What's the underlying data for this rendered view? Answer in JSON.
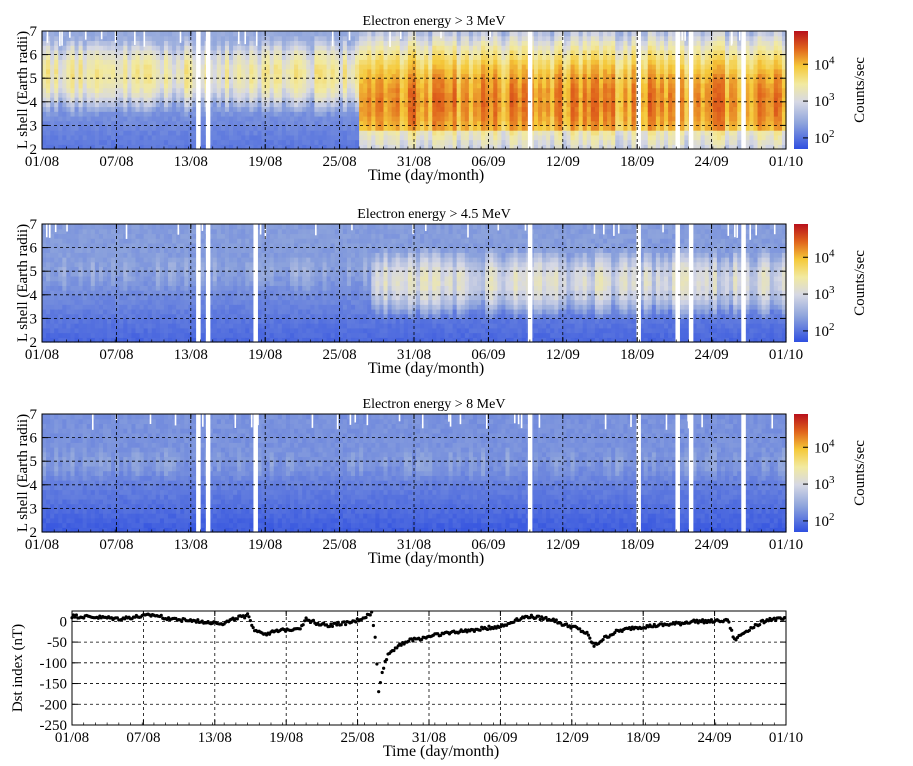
{
  "figure": {
    "x_tick_labels": [
      "01/08",
      "07/08",
      "13/08",
      "19/08",
      "25/08",
      "31/08",
      "06/09",
      "12/09",
      "18/09",
      "24/09",
      "01/10"
    ],
    "x_axis_label": "Time (day/month)",
    "colorbar_label": "Counts/sec",
    "colorbar_tick_labels": [
      "10^2",
      "10^3",
      "10^4"
    ]
  },
  "chart_data": [
    {
      "type": "heatmap",
      "title": "Electron energy > 3 MeV",
      "xlabel": "Time (day/month)",
      "ylabel": "L shell (Earth radii)",
      "x_range": [
        "01/08",
        "01/10"
      ],
      "ylim": [
        2,
        7
      ],
      "y_ticks": [
        2,
        3,
        4,
        5,
        6,
        7
      ],
      "colorbar": {
        "label": "Counts/sec",
        "scale": "log",
        "range": [
          50,
          80000
        ],
        "ticks": [
          100,
          1000,
          10000
        ]
      },
      "grid": true,
      "background_counts": 300,
      "flux_profile": [
        {
          "from_day": 0,
          "to_day": 26,
          "peak_L": 5.2,
          "width": 1.0,
          "counts": 3000
        },
        {
          "from_day": 26,
          "to_day": 61,
          "peak_L": 4.0,
          "width": 1.6,
          "counts": 20000
        }
      ],
      "data_gaps_day": [
        12.8,
        13.6,
        40.0,
        48.9,
        52.1,
        53.2,
        57.5
      ]
    },
    {
      "type": "heatmap",
      "title": "Electron energy > 4.5 MeV",
      "xlabel": "Time (day/month)",
      "ylabel": "L shell (Earth radii)",
      "x_range": [
        "01/08",
        "01/10"
      ],
      "ylim": [
        2,
        7
      ],
      "y_ticks": [
        2,
        3,
        4,
        5,
        6,
        7
      ],
      "colorbar": {
        "label": "Counts/sec",
        "scale": "log",
        "range": [
          50,
          80000
        ],
        "ticks": [
          100,
          1000,
          10000
        ]
      },
      "grid": true,
      "background_counts": 220,
      "flux_profile": [
        {
          "from_day": 0,
          "to_day": 27,
          "peak_L": 5.0,
          "width": 1.0,
          "counts": 260
        },
        {
          "from_day": 27,
          "to_day": 61,
          "peak_L": 4.6,
          "width": 1.0,
          "counts": 1300
        }
      ],
      "data_gaps_day": [
        12.8,
        13.6,
        17.5,
        40.0,
        48.9,
        52.1,
        53.2,
        57.5
      ]
    },
    {
      "type": "heatmap",
      "title": "Electron energy > 8 MeV",
      "xlabel": "Time (day/month)",
      "ylabel": "L shell (Earth radii)",
      "x_range": [
        "01/08",
        "01/10"
      ],
      "ylim": [
        2,
        7
      ],
      "y_ticks": [
        2,
        3,
        4,
        5,
        6,
        7
      ],
      "colorbar": {
        "label": "Counts/sec",
        "scale": "log",
        "range": [
          50,
          80000
        ],
        "ticks": [
          100,
          1000,
          10000
        ]
      },
      "grid": true,
      "background_counts": 180,
      "flux_profile": [
        {
          "from_day": 0,
          "to_day": 61,
          "peak_L": 5.0,
          "width": 1.0,
          "counts": 200
        }
      ],
      "data_gaps_day": [
        12.8,
        13.6,
        17.5,
        40.0,
        48.9,
        52.1,
        53.2,
        57.5
      ]
    },
    {
      "type": "scatter",
      "title": "",
      "xlabel": "Time (day/month)",
      "ylabel": "Dst index (nT)",
      "x_range": [
        "01/08",
        "01/10"
      ],
      "ylim": [
        -250,
        25
      ],
      "y_ticks": [
        0,
        -50,
        -100,
        -150,
        -200,
        -250
      ],
      "grid": true,
      "x_unit": "days after 01/08",
      "points": [
        [
          0,
          12
        ],
        [
          2,
          10
        ],
        [
          4,
          6
        ],
        [
          6,
          12
        ],
        [
          7,
          15
        ],
        [
          8,
          8
        ],
        [
          10,
          2
        ],
        [
          12,
          -2
        ],
        [
          13,
          -5
        ],
        [
          14,
          8
        ],
        [
          15,
          14
        ],
        [
          15.6,
          -20
        ],
        [
          16.5,
          -30
        ],
        [
          18,
          -22
        ],
        [
          19.5,
          -15
        ],
        [
          20,
          5
        ],
        [
          21,
          -5
        ],
        [
          22,
          -10
        ],
        [
          23,
          -5
        ],
        [
          24,
          -2
        ],
        [
          25,
          10
        ],
        [
          25.6,
          20
        ],
        [
          25.9,
          -40
        ],
        [
          26.2,
          -170
        ],
        [
          26.5,
          -120
        ],
        [
          27,
          -80
        ],
        [
          28,
          -55
        ],
        [
          29,
          -45
        ],
        [
          30,
          -40
        ],
        [
          31,
          -32
        ],
        [
          33,
          -25
        ],
        [
          35,
          -18
        ],
        [
          37,
          -10
        ],
        [
          38,
          5
        ],
        [
          39,
          12
        ],
        [
          40,
          8
        ],
        [
          41,
          5
        ],
        [
          42,
          -8
        ],
        [
          43,
          -15
        ],
        [
          44,
          -30
        ],
        [
          44.6,
          -60
        ],
        [
          45.5,
          -40
        ],
        [
          46.5,
          -25
        ],
        [
          48,
          -15
        ],
        [
          50,
          -10
        ],
        [
          52,
          -5
        ],
        [
          53,
          0
        ],
        [
          55,
          0
        ],
        [
          56,
          5
        ],
        [
          56.6,
          -45
        ],
        [
          57.5,
          -25
        ],
        [
          58.5,
          -8
        ],
        [
          59.5,
          5
        ],
        [
          61,
          5
        ]
      ]
    }
  ]
}
